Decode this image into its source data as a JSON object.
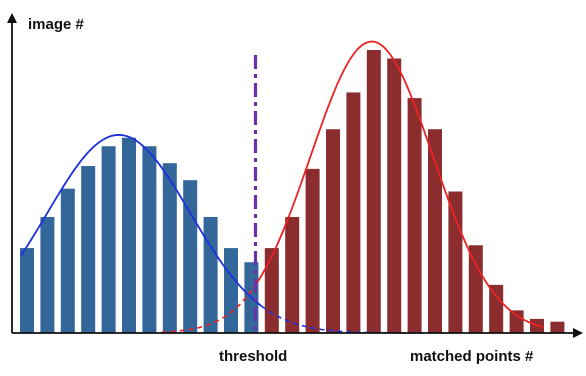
{
  "chart_data": {
    "type": "bar",
    "ylabel": "image #",
    "xlabel": "matched points #",
    "x_range": [
      0,
      27
    ],
    "y_range": [
      0,
      10
    ],
    "grid": false,
    "series": [
      {
        "color": "#336699",
        "curve_color": "#1f2fe0",
        "x": [
          1,
          2,
          3,
          4,
          5,
          6,
          7,
          8,
          9,
          10,
          11,
          12
        ],
        "values": [
          3.0,
          4.1,
          5.1,
          5.9,
          6.6,
          6.9,
          6.6,
          6.0,
          5.4,
          4.1,
          3.0,
          2.5
        ],
        "curve": {
          "mean": 5.5,
          "sd": 3.5,
          "peak": 7.0
        }
      },
      {
        "color": "#8b2d2f",
        "curve_color": "#ee2222",
        "x": [
          13,
          14,
          15,
          16,
          17,
          18,
          19,
          20,
          21,
          22,
          23,
          24,
          25,
          26,
          27
        ],
        "values": [
          3.0,
          4.1,
          5.8,
          7.2,
          8.5,
          10.0,
          9.7,
          8.3,
          7.2,
          5.0,
          3.1,
          1.7,
          0.8,
          0.5,
          0.4
        ],
        "curve": {
          "mean": 17.9,
          "sd": 3.0,
          "peak": 10.3
        }
      }
    ],
    "annotations": [
      {
        "label": "threshold",
        "x": 12.2,
        "color": "#6633aa"
      }
    ]
  }
}
